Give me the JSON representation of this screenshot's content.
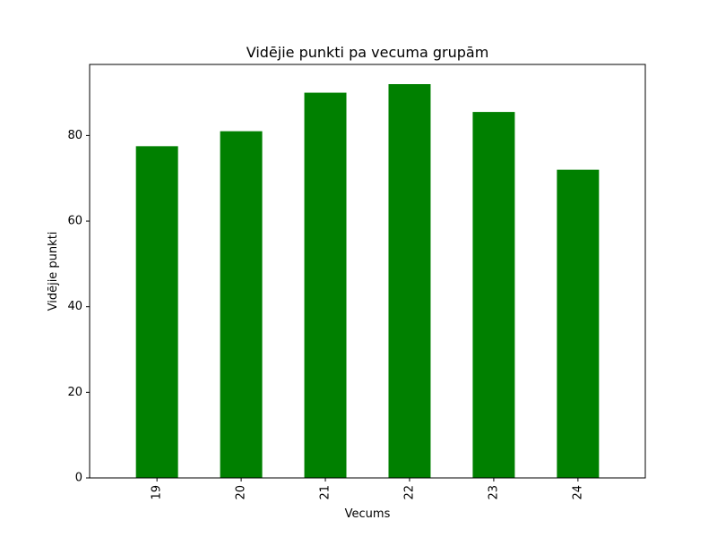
{
  "chart_data": {
    "type": "bar",
    "title": "Vidējie punkti pa vecuma grupām",
    "xlabel": "Vecums",
    "ylabel": "Vidējie punkti",
    "categories": [
      "19",
      "20",
      "21",
      "22",
      "23",
      "24"
    ],
    "values": [
      77.5,
      81,
      90,
      92,
      85.5,
      72
    ],
    "ylim": [
      0,
      96.6
    ],
    "yticks": [
      0,
      20,
      40,
      60,
      80
    ],
    "bar_color": "#008000",
    "grid": false,
    "legend": "none"
  }
}
